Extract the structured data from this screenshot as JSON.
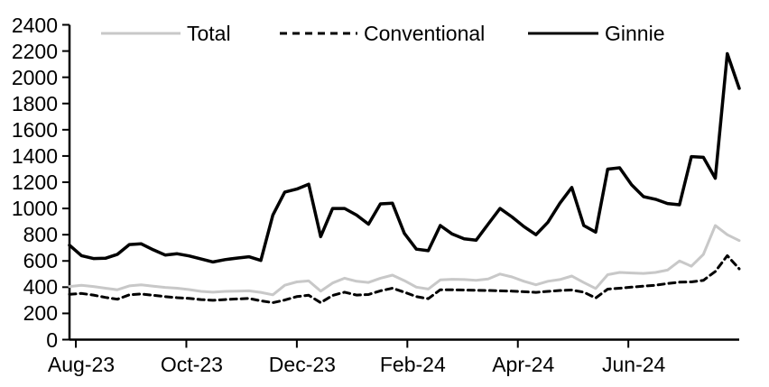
{
  "chart_data": {
    "type": "line",
    "title": "",
    "xlabel": "",
    "ylabel": "",
    "ylim": [
      0,
      2400
    ],
    "y_tick_step": 200,
    "y_ticks": [
      0,
      200,
      400,
      600,
      800,
      1000,
      1200,
      1400,
      1600,
      1800,
      2000,
      2200,
      2400
    ],
    "x_tick_labels": [
      "Aug-23",
      "Oct-23",
      "Dec-23",
      "Feb-24",
      "Apr-24",
      "Jun-24"
    ],
    "x_tick_positions": [
      0.53,
      9.77,
      19.01,
      28.25,
      37.49,
      46.73
    ],
    "frequency": "weekly",
    "n_points": 57,
    "grid": false,
    "legend_position": "top",
    "axis_color": "#000000",
    "series": [
      {
        "name": "Total",
        "color": "#c8c8c8",
        "style": "solid",
        "values": [
          405,
          415,
          405,
          392,
          380,
          410,
          418,
          408,
          398,
          392,
          382,
          368,
          362,
          368,
          370,
          372,
          360,
          342,
          415,
          440,
          448,
          370,
          432,
          468,
          445,
          436,
          468,
          492,
          450,
          400,
          386,
          455,
          460,
          458,
          452,
          462,
          500,
          478,
          445,
          418,
          445,
          458,
          485,
          435,
          390,
          495,
          512,
          508,
          505,
          512,
          530,
          600,
          560,
          650,
          870,
          800,
          755
        ]
      },
      {
        "name": "Conventional",
        "color": "#000000",
        "style": "dashed",
        "values": [
          345,
          352,
          340,
          322,
          308,
          342,
          348,
          338,
          328,
          320,
          315,
          305,
          300,
          305,
          310,
          314,
          296,
          282,
          302,
          328,
          338,
          282,
          337,
          362,
          340,
          344,
          372,
          392,
          362,
          328,
          312,
          380,
          380,
          378,
          376,
          375,
          372,
          370,
          365,
          360,
          368,
          375,
          378,
          362,
          318,
          385,
          392,
          400,
          408,
          415,
          428,
          438,
          440,
          452,
          520,
          640,
          540
        ]
      },
      {
        "name": "Ginnie",
        "color": "#000000",
        "style": "solid",
        "values": [
          720,
          640,
          618,
          620,
          650,
          725,
          730,
          685,
          645,
          655,
          638,
          615,
          592,
          610,
          622,
          632,
          604,
          950,
          1125,
          1148,
          1185,
          785,
          1000,
          1000,
          950,
          880,
          1035,
          1040,
          810,
          690,
          678,
          870,
          805,
          768,
          758,
          880,
          1000,
          935,
          862,
          800,
          895,
          1040,
          1160,
          870,
          820,
          1300,
          1310,
          1180,
          1090,
          1070,
          1038,
          1028,
          1395,
          1390,
          1230,
          2180,
          1915
        ]
      }
    ]
  }
}
